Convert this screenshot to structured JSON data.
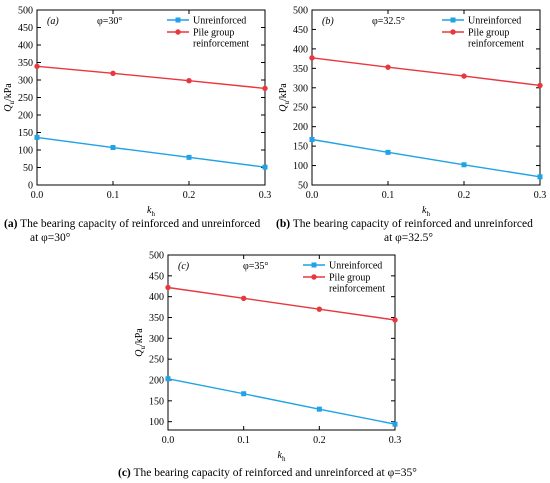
{
  "colors": {
    "unreinforced": "#1fa2e6",
    "reinforced": "#e8373d",
    "axis": "#000000"
  },
  "chart_data": [
    {
      "type": "line",
      "panel_label": "(a)",
      "phi_text": "φ=30°",
      "ylabel": "Qu/kPa",
      "ylabel_main": "Q",
      "ylabel_sub": "u",
      "ylabel_unit": "/kPa",
      "xlabel_main": "k",
      "xlabel_sub": "h",
      "x": [
        0.0,
        0.1,
        0.2,
        0.3
      ],
      "xlim": [
        0.0,
        0.3
      ],
      "ylim": [
        0,
        500
      ],
      "xticks": [
        "0.0",
        "0.1",
        "0.2",
        "0.3"
      ],
      "yticks": [
        "0",
        "50",
        "100",
        "150",
        "200",
        "250",
        "300",
        "350",
        "400",
        "450",
        "500"
      ],
      "legend_position": "top-right",
      "series": [
        {
          "name": "Unreinforced",
          "color": "#1fa2e6",
          "marker": "square",
          "values": [
            136,
            107,
            79,
            51
          ]
        },
        {
          "name": "Pile group reinforcement",
          "name_lines": [
            "Pile group",
            "reinforcement"
          ],
          "color": "#e8373d",
          "marker": "circle",
          "values": [
            339,
            319,
            298,
            276
          ]
        }
      ],
      "caption_letter": "(a)",
      "caption_lines": [
        "The bearing capacity of reinforced and unreinforced",
        "at φ=30°"
      ]
    },
    {
      "type": "line",
      "panel_label": "(b)",
      "phi_text": "φ=32.5°",
      "ylabel": "Qu/kPa",
      "ylabel_main": "Q",
      "ylabel_sub": "u",
      "ylabel_unit": "/kPa",
      "xlabel_main": "k",
      "xlabel_sub": "h",
      "x": [
        0.0,
        0.1,
        0.2,
        0.3
      ],
      "xlim": [
        0.0,
        0.3
      ],
      "ylim": [
        50,
        500
      ],
      "xticks": [
        "0.0",
        "0.1",
        "0.2",
        "0.3"
      ],
      "yticks": [
        "50",
        "100",
        "150",
        "200",
        "250",
        "300",
        "350",
        "400",
        "450",
        "500"
      ],
      "legend_position": "top-right",
      "series": [
        {
          "name": "Unreinforced",
          "color": "#1fa2e6",
          "marker": "square",
          "values": [
            167,
            134,
            102,
            71
          ]
        },
        {
          "name": "Pile group reinforcement",
          "name_lines": [
            "Pile group",
            "reinforcement"
          ],
          "color": "#e8373d",
          "marker": "circle",
          "values": [
            377,
            353,
            330,
            306
          ]
        }
      ],
      "caption_letter": "(b)",
      "caption_lines": [
        "The bearing capacity of reinforced and unreinforced",
        "at φ=32.5°"
      ]
    },
    {
      "type": "line",
      "panel_label": "(c)",
      "phi_text": "φ=35°",
      "ylabel": "Qu/kPa",
      "ylabel_main": "Q",
      "ylabel_sub": "u",
      "ylabel_unit": "/kPa",
      "xlabel_main": "k",
      "xlabel_sub": "h",
      "x": [
        0.0,
        0.1,
        0.2,
        0.3
      ],
      "xlim": [
        0.0,
        0.3
      ],
      "ylim": [
        80,
        500
      ],
      "xticks": [
        "0.0",
        "0.1",
        "0.2",
        "0.3"
      ],
      "yticks": [
        "100",
        "150",
        "200",
        "250",
        "300",
        "350",
        "400",
        "450",
        "500"
      ],
      "legend_position": "top-right",
      "series": [
        {
          "name": "Unreinforced",
          "color": "#1fa2e6",
          "marker": "square",
          "values": [
            203,
            167,
            130,
            94
          ]
        },
        {
          "name": "Pile group reinforcement",
          "name_lines": [
            "Pile group",
            "reinforcement"
          ],
          "color": "#e8373d",
          "marker": "circle",
          "values": [
            422,
            396,
            370,
            344
          ]
        }
      ],
      "caption_letter": "(c)",
      "caption_lines": [
        "The bearing capacity of reinforced and unreinforced at φ=35°"
      ]
    }
  ]
}
